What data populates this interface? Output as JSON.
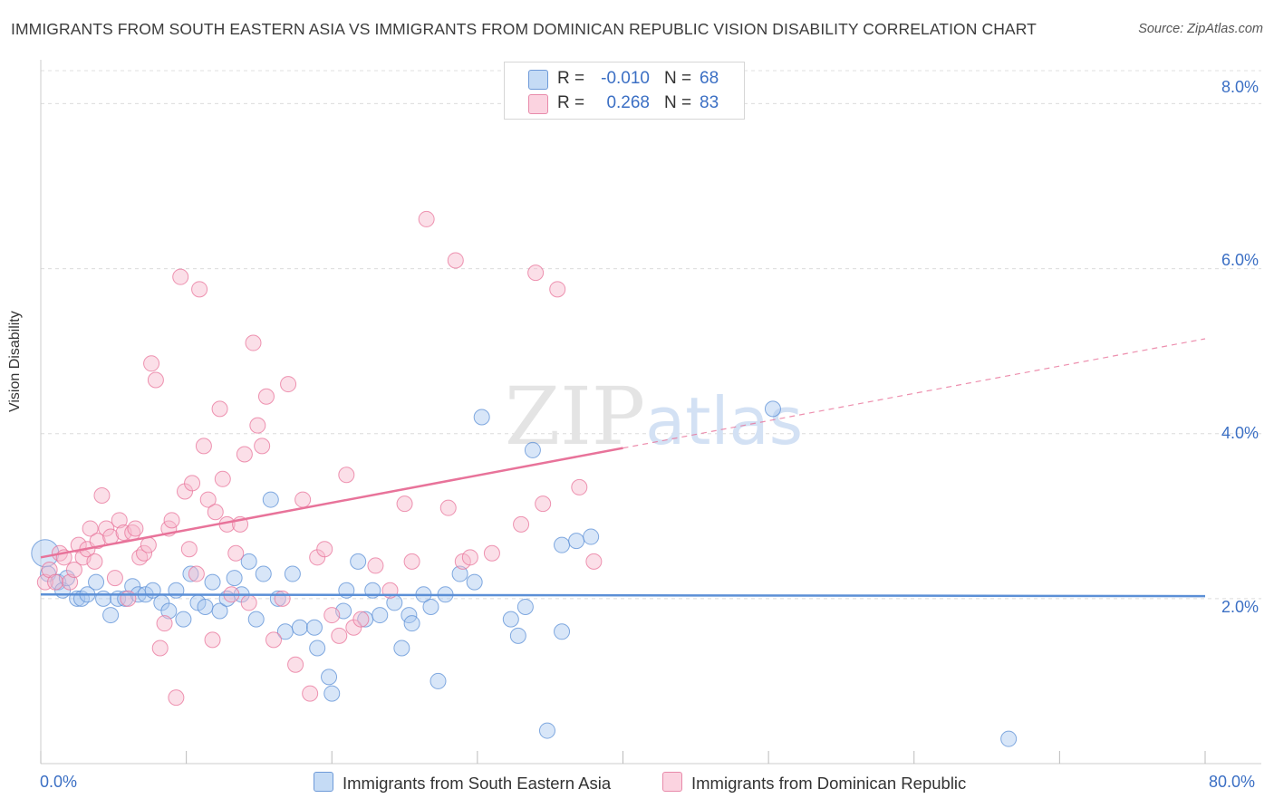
{
  "title": "IMMIGRANTS FROM SOUTH EASTERN ASIA VS IMMIGRANTS FROM DOMINICAN REPUBLIC VISION DISABILITY CORRELATION CHART",
  "source": "Source: ZipAtlas.com",
  "watermark": "ZIPatlas",
  "legend": {
    "rows": [
      {
        "r_label": "R =",
        "r_value": "-0.010",
        "n_label": "N =",
        "n_value": "68",
        "color": "#a9c8f0"
      },
      {
        "r_label": "R =",
        "r_value": "0.268",
        "n_label": "N =",
        "n_value": "83",
        "color": "#f6b8cc"
      }
    ]
  },
  "chart_data": {
    "type": "scatter",
    "title": "IMMIGRANTS FROM SOUTH EASTERN ASIA VS IMMIGRANTS FROM DOMINICAN REPUBLIC VISION DISABILITY CORRELATION CHART",
    "xlabel": "",
    "ylabel": "Vision Disability",
    "xlim": [
      0,
      80
    ],
    "ylim": [
      0,
      8.4
    ],
    "x_tick_labels": [
      "0.0%",
      "80.0%"
    ],
    "y_tick_labels": [
      "2.0%",
      "4.0%",
      "6.0%",
      "8.0%"
    ],
    "y_ticks": [
      2,
      4,
      6,
      8
    ],
    "grid": "horizontal dashed",
    "legend_position": "top-center",
    "series": [
      {
        "name": "Immigrants from South Eastern Asia",
        "color": "#5b8fd6",
        "fill": "#a9c8f0",
        "trend": {
          "x": [
            0,
            80
          ],
          "y": [
            2.05,
            2.03
          ],
          "solid_to": 80
        },
        "points": [
          [
            0.3,
            2.55
          ],
          [
            0.5,
            2.3
          ],
          [
            1.2,
            2.2
          ],
          [
            1.5,
            2.1
          ],
          [
            1.8,
            2.25
          ],
          [
            2.5,
            2.0
          ],
          [
            2.8,
            2.0
          ],
          [
            3.2,
            2.05
          ],
          [
            3.8,
            2.2
          ],
          [
            4.3,
            2.0
          ],
          [
            4.8,
            1.8
          ],
          [
            5.3,
            2.0
          ],
          [
            5.8,
            2.0
          ],
          [
            6.3,
            2.15
          ],
          [
            6.7,
            2.05
          ],
          [
            7.2,
            2.05
          ],
          [
            7.7,
            2.1
          ],
          [
            8.3,
            1.95
          ],
          [
            8.8,
            1.85
          ],
          [
            9.3,
            2.1
          ],
          [
            9.8,
            1.75
          ],
          [
            10.3,
            2.3
          ],
          [
            10.8,
            1.95
          ],
          [
            11.3,
            1.9
          ],
          [
            11.8,
            2.2
          ],
          [
            12.3,
            1.85
          ],
          [
            12.8,
            2.0
          ],
          [
            13.3,
            2.25
          ],
          [
            13.8,
            2.05
          ],
          [
            14.3,
            2.45
          ],
          [
            14.8,
            1.75
          ],
          [
            15.3,
            2.3
          ],
          [
            15.8,
            3.2
          ],
          [
            16.3,
            2.0
          ],
          [
            16.8,
            1.6
          ],
          [
            17.3,
            2.3
          ],
          [
            17.8,
            1.65
          ],
          [
            18.8,
            1.65
          ],
          [
            19.0,
            1.4
          ],
          [
            19.8,
            1.05
          ],
          [
            20.0,
            0.85
          ],
          [
            20.8,
            1.85
          ],
          [
            21.0,
            2.1
          ],
          [
            21.8,
            2.45
          ],
          [
            22.3,
            1.75
          ],
          [
            22.8,
            2.1
          ],
          [
            23.3,
            1.8
          ],
          [
            24.3,
            1.95
          ],
          [
            24.8,
            1.4
          ],
          [
            25.3,
            1.8
          ],
          [
            25.5,
            1.7
          ],
          [
            26.3,
            2.05
          ],
          [
            26.8,
            1.9
          ],
          [
            27.3,
            1.0
          ],
          [
            27.8,
            2.05
          ],
          [
            28.8,
            2.3
          ],
          [
            29.8,
            2.2
          ],
          [
            30.3,
            4.2
          ],
          [
            32.3,
            1.75
          ],
          [
            32.8,
            1.55
          ],
          [
            33.3,
            1.9
          ],
          [
            33.8,
            3.8
          ],
          [
            34.8,
            0.4
          ],
          [
            35.8,
            1.6
          ],
          [
            35.8,
            2.65
          ],
          [
            36.8,
            2.7
          ],
          [
            37.8,
            2.75
          ],
          [
            50.3,
            4.3
          ],
          [
            66.5,
            0.3
          ]
        ]
      },
      {
        "name": "Immigrants from Dominican Republic",
        "color": "#e8739a",
        "fill": "#f6b8cc",
        "trend": {
          "x": [
            0,
            80
          ],
          "y": [
            2.5,
            5.15
          ],
          "solid_to": 40
        },
        "points": [
          [
            0.3,
            2.2
          ],
          [
            0.6,
            2.35
          ],
          [
            1.0,
            2.2
          ],
          [
            1.3,
            2.55
          ],
          [
            1.6,
            2.5
          ],
          [
            2.0,
            2.2
          ],
          [
            2.3,
            2.35
          ],
          [
            2.6,
            2.65
          ],
          [
            2.9,
            2.5
          ],
          [
            3.2,
            2.6
          ],
          [
            3.4,
            2.85
          ],
          [
            3.7,
            2.45
          ],
          [
            3.9,
            2.7
          ],
          [
            4.2,
            3.25
          ],
          [
            4.5,
            2.85
          ],
          [
            4.8,
            2.75
          ],
          [
            5.1,
            2.25
          ],
          [
            5.4,
            2.95
          ],
          [
            5.7,
            2.8
          ],
          [
            6.0,
            2.0
          ],
          [
            6.3,
            2.8
          ],
          [
            6.5,
            2.85
          ],
          [
            6.8,
            2.5
          ],
          [
            7.1,
            2.55
          ],
          [
            7.4,
            2.65
          ],
          [
            7.6,
            4.85
          ],
          [
            7.9,
            4.65
          ],
          [
            8.2,
            1.4
          ],
          [
            8.5,
            1.7
          ],
          [
            8.8,
            2.85
          ],
          [
            9.0,
            2.95
          ],
          [
            9.3,
            0.8
          ],
          [
            9.6,
            5.9
          ],
          [
            9.9,
            3.3
          ],
          [
            10.2,
            2.6
          ],
          [
            10.4,
            3.4
          ],
          [
            10.7,
            2.3
          ],
          [
            10.9,
            5.75
          ],
          [
            11.2,
            3.85
          ],
          [
            11.5,
            3.2
          ],
          [
            11.8,
            1.5
          ],
          [
            12.0,
            3.05
          ],
          [
            12.3,
            4.3
          ],
          [
            12.5,
            3.45
          ],
          [
            12.8,
            2.9
          ],
          [
            13.1,
            2.05
          ],
          [
            13.4,
            2.55
          ],
          [
            13.7,
            2.9
          ],
          [
            14.0,
            3.75
          ],
          [
            14.3,
            1.95
          ],
          [
            14.6,
            5.1
          ],
          [
            14.9,
            4.1
          ],
          [
            15.2,
            3.85
          ],
          [
            15.5,
            4.45
          ],
          [
            16.0,
            1.5
          ],
          [
            16.6,
            2.0
          ],
          [
            17.0,
            4.6
          ],
          [
            17.5,
            1.2
          ],
          [
            18.0,
            3.2
          ],
          [
            18.5,
            0.85
          ],
          [
            19.0,
            2.5
          ],
          [
            19.5,
            2.6
          ],
          [
            20.0,
            1.8
          ],
          [
            20.5,
            1.55
          ],
          [
            21.0,
            3.5
          ],
          [
            21.5,
            1.65
          ],
          [
            22.0,
            1.75
          ],
          [
            23.0,
            2.4
          ],
          [
            24.0,
            2.1
          ],
          [
            25.0,
            3.15
          ],
          [
            25.5,
            2.45
          ],
          [
            26.5,
            6.6
          ],
          [
            28.0,
            3.1
          ],
          [
            28.5,
            6.1
          ],
          [
            29.0,
            2.45
          ],
          [
            29.5,
            2.5
          ],
          [
            31.0,
            2.55
          ],
          [
            33.0,
            2.9
          ],
          [
            34.0,
            5.95
          ],
          [
            34.5,
            3.15
          ],
          [
            35.5,
            5.75
          ],
          [
            37.0,
            3.35
          ],
          [
            38.0,
            2.45
          ]
        ]
      }
    ]
  }
}
